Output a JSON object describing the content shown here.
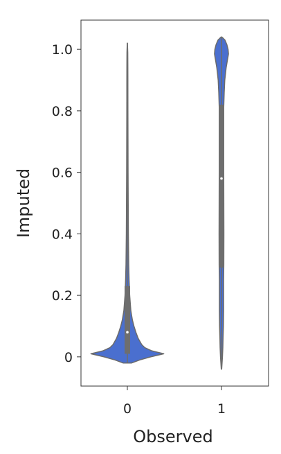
{
  "chart_data": {
    "type": "violin",
    "xlabel": "Observed",
    "ylabel": "Imputed",
    "categories": [
      "0",
      "1"
    ],
    "ylim": [
      -0.095,
      1.095
    ],
    "yticks": [
      {
        "value": 0,
        "label": "0"
      },
      {
        "value": 0.2,
        "label": "0.2"
      },
      {
        "value": 0.4,
        "label": "0.4"
      },
      {
        "value": 0.6,
        "label": "0.6"
      },
      {
        "value": 0.8,
        "label": "0.8"
      },
      {
        "value": 1.0,
        "label": "1.0"
      }
    ],
    "grid": false,
    "colors": {
      "violin_fill": "#4a6fcf",
      "violin_edge": "#6b6b6b",
      "box": "#6e6e6e",
      "median": "#ffffff",
      "axes": "#333333"
    },
    "violins": [
      {
        "category": "0",
        "median": 0.08,
        "q1": 0.01,
        "q3": 0.23,
        "whisker_low": -0.02,
        "whisker_high": 1.02,
        "density": [
          [
            -0.02,
            0.11
          ],
          [
            -0.01,
            0.32
          ],
          [
            0.0,
            0.6
          ],
          [
            0.01,
            0.94
          ],
          [
            0.02,
            0.62
          ],
          [
            0.03,
            0.45
          ],
          [
            0.04,
            0.37
          ],
          [
            0.06,
            0.28
          ],
          [
            0.08,
            0.22
          ],
          [
            0.1,
            0.17
          ],
          [
            0.12,
            0.13
          ],
          [
            0.15,
            0.09
          ],
          [
            0.2,
            0.06
          ],
          [
            0.25,
            0.045
          ],
          [
            0.3,
            0.035
          ],
          [
            0.4,
            0.026
          ],
          [
            0.5,
            0.022
          ],
          [
            0.6,
            0.018
          ],
          [
            0.7,
            0.016
          ],
          [
            0.8,
            0.014
          ],
          [
            0.9,
            0.013
          ],
          [
            0.95,
            0.012
          ],
          [
            0.99,
            0.01
          ],
          [
            1.02,
            0.002
          ]
        ]
      },
      {
        "category": "1",
        "median": 0.58,
        "q1": 0.29,
        "q3": 0.82,
        "whisker_low": -0.04,
        "whisker_high": 1.04,
        "density": [
          [
            -0.04,
            0.005
          ],
          [
            -0.02,
            0.015
          ],
          [
            0.0,
            0.025
          ],
          [
            0.03,
            0.035
          ],
          [
            0.06,
            0.04
          ],
          [
            0.1,
            0.05
          ],
          [
            0.15,
            0.055
          ],
          [
            0.2,
            0.055
          ],
          [
            0.25,
            0.055
          ],
          [
            0.3,
            0.06
          ],
          [
            0.4,
            0.062
          ],
          [
            0.5,
            0.06
          ],
          [
            0.6,
            0.058
          ],
          [
            0.7,
            0.055
          ],
          [
            0.8,
            0.055
          ],
          [
            0.86,
            0.07
          ],
          [
            0.9,
            0.085
          ],
          [
            0.94,
            0.12
          ],
          [
            0.97,
            0.16
          ],
          [
            0.985,
            0.18
          ],
          [
            1.0,
            0.17
          ],
          [
            1.015,
            0.14
          ],
          [
            1.03,
            0.09
          ],
          [
            1.04,
            0.01
          ]
        ]
      }
    ]
  }
}
